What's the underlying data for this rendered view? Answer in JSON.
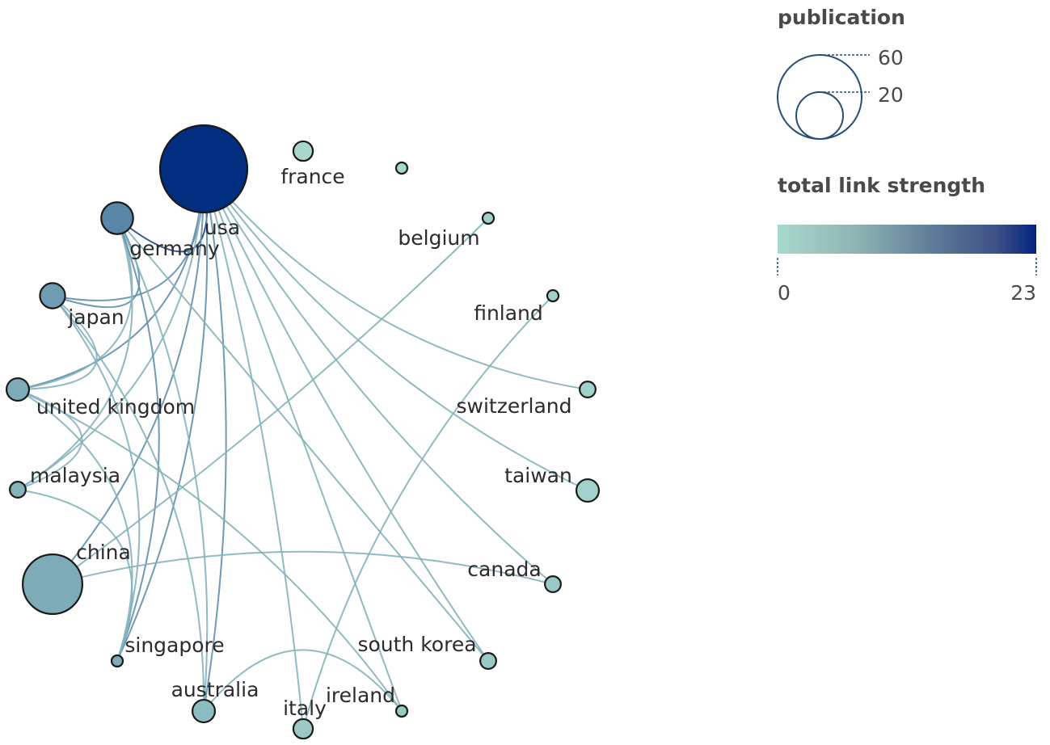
{
  "colors": {
    "low": "#a8d8cc",
    "high": "#022e80",
    "legend_stroke": "#264f78"
  },
  "legend": {
    "size_title": "publication",
    "size_large_value": "60",
    "size_small_value": "20",
    "color_title": "total link strength",
    "color_min": "0",
    "color_max": "23"
  },
  "chart_data": {
    "type": "network",
    "nodes": [
      {
        "id": "usa",
        "label": "usa",
        "publications": 60,
        "link_strength": 23
      },
      {
        "id": "france",
        "label": "france",
        "publications": 3,
        "link_strength": 0
      },
      {
        "id": "unlabeled",
        "label": "",
        "publications": 1,
        "link_strength": 0
      },
      {
        "id": "belgium",
        "label": "belgium",
        "publications": 1,
        "link_strength": 1
      },
      {
        "id": "finland",
        "label": "finland",
        "publications": 1,
        "link_strength": 1
      },
      {
        "id": "switzerland",
        "label": "switzerland",
        "publications": 2,
        "link_strength": 1
      },
      {
        "id": "taiwan",
        "label": "taiwan",
        "publications": 4,
        "link_strength": 1
      },
      {
        "id": "canada",
        "label": "canada",
        "publications": 2,
        "link_strength": 2
      },
      {
        "id": "south korea",
        "label": "south korea",
        "publications": 2,
        "link_strength": 2
      },
      {
        "id": "ireland",
        "label": "ireland",
        "publications": 1,
        "link_strength": 2
      },
      {
        "id": "italy",
        "label": "italy",
        "publications": 3,
        "link_strength": 2
      },
      {
        "id": "australia",
        "label": "australia",
        "publications": 4,
        "link_strength": 4
      },
      {
        "id": "singapore",
        "label": "singapore",
        "publications": 1,
        "link_strength": 6
      },
      {
        "id": "china",
        "label": "china",
        "publications": 28,
        "link_strength": 6
      },
      {
        "id": "malaysia",
        "label": "malaysia",
        "publications": 2,
        "link_strength": 5
      },
      {
        "id": "united kingdom",
        "label": "united kingdom",
        "publications": 4,
        "link_strength": 6
      },
      {
        "id": "japan",
        "label": "japan",
        "publications": 5,
        "link_strength": 8
      },
      {
        "id": "germany",
        "label": "germany",
        "publications": 8,
        "link_strength": 11
      }
    ],
    "links": [
      {
        "source": "usa",
        "target": "germany",
        "weight": 4
      },
      {
        "source": "usa",
        "target": "japan",
        "weight": 2
      },
      {
        "source": "usa",
        "target": "united kingdom",
        "weight": 2
      },
      {
        "source": "usa",
        "target": "malaysia",
        "weight": 1
      },
      {
        "source": "usa",
        "target": "china",
        "weight": 2
      },
      {
        "source": "usa",
        "target": "singapore",
        "weight": 2
      },
      {
        "source": "usa",
        "target": "australia",
        "weight": 2
      },
      {
        "source": "usa",
        "target": "italy",
        "weight": 1
      },
      {
        "source": "usa",
        "target": "ireland",
        "weight": 1
      },
      {
        "source": "usa",
        "target": "south korea",
        "weight": 1
      },
      {
        "source": "usa",
        "target": "canada",
        "weight": 1
      },
      {
        "source": "usa",
        "target": "taiwan",
        "weight": 1
      },
      {
        "source": "usa",
        "target": "switzerland",
        "weight": 1
      },
      {
        "source": "germany",
        "target": "japan",
        "weight": 2
      },
      {
        "source": "germany",
        "target": "united kingdom",
        "weight": 1
      },
      {
        "source": "germany",
        "target": "malaysia",
        "weight": 1
      },
      {
        "source": "germany",
        "target": "singapore",
        "weight": 2
      },
      {
        "source": "germany",
        "target": "australia",
        "weight": 1
      },
      {
        "source": "germany",
        "target": "south korea",
        "weight": 1
      },
      {
        "source": "japan",
        "target": "united kingdom",
        "weight": 1
      },
      {
        "source": "japan",
        "target": "singapore",
        "weight": 1
      },
      {
        "source": "japan",
        "target": "australia",
        "weight": 1
      },
      {
        "source": "united kingdom",
        "target": "malaysia",
        "weight": 1
      },
      {
        "source": "united kingdom",
        "target": "singapore",
        "weight": 1
      },
      {
        "source": "united kingdom",
        "target": "ireland",
        "weight": 1
      },
      {
        "source": "malaysia",
        "target": "singapore",
        "weight": 1
      },
      {
        "source": "china",
        "target": "belgium",
        "weight": 1
      },
      {
        "source": "china",
        "target": "canada",
        "weight": 1
      },
      {
        "source": "italy",
        "target": "finland",
        "weight": 1
      },
      {
        "source": "australia",
        "target": "ireland",
        "weight": 1
      }
    ]
  }
}
